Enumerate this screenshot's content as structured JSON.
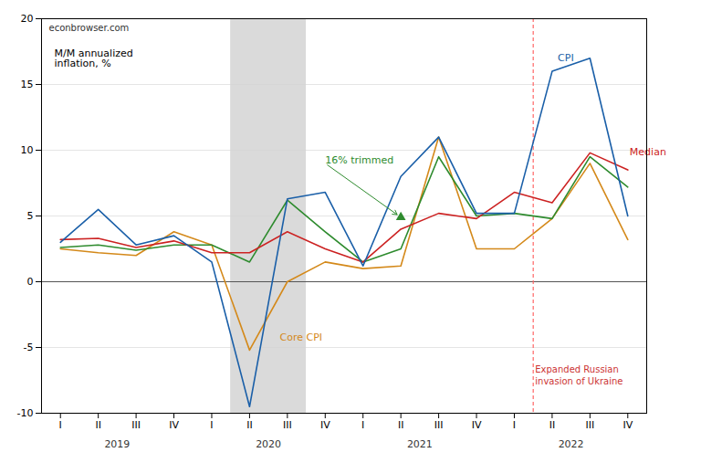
{
  "chart_data": {
    "type": "line",
    "ylabel": "M/M annualized\ninflation, %",
    "watermark": "econbrowser.com",
    "categories": [
      "I",
      "II",
      "III",
      "IV",
      "I",
      "II",
      "III",
      "IV",
      "I",
      "II",
      "III",
      "IV",
      "I",
      "II",
      "III",
      "IV"
    ],
    "category_groups": [
      {
        "label": "2019",
        "size": 4
      },
      {
        "label": "2020",
        "size": 4
      },
      {
        "label": "2021",
        "size": 4
      },
      {
        "label": "2022",
        "size": 4
      }
    ],
    "series": [
      {
        "name": "CPI",
        "color": "#1a5fa8",
        "values": [
          3.0,
          5.5,
          2.8,
          3.5,
          1.5,
          -9.5,
          6.3,
          6.8,
          1.2,
          8.0,
          11.0,
          5.2,
          5.2,
          16.0,
          17.0,
          5.0
        ]
      },
      {
        "name": "Core CPI",
        "color": "#d4891a",
        "values": [
          2.5,
          2.2,
          2.0,
          3.8,
          2.8,
          -5.2,
          0.0,
          1.5,
          1.0,
          1.2,
          11.0,
          2.5,
          2.5,
          4.8,
          9.0,
          3.2
        ]
      },
      {
        "name": "16% trimmed",
        "color": "#2e8b2e",
        "values": [
          2.6,
          2.8,
          2.4,
          2.8,
          2.8,
          1.5,
          6.2,
          3.8,
          1.5,
          2.5,
          9.5,
          5.0,
          5.2,
          4.8,
          9.5,
          7.2
        ]
      },
      {
        "name": "Median",
        "color": "#cc2222",
        "values": [
          3.2,
          3.3,
          2.6,
          3.1,
          2.2,
          2.2,
          3.8,
          2.5,
          1.5,
          4.0,
          5.2,
          4.8,
          6.8,
          6.0,
          9.8,
          8.5
        ]
      }
    ],
    "ylim": [
      -10,
      20
    ],
    "yticks": [
      -10,
      -5,
      0,
      5,
      10,
      15,
      20
    ],
    "grid": true,
    "shaded_spans": [
      {
        "start": 4.5,
        "end": 6.5
      }
    ],
    "event_lines": [
      {
        "x": 12.5,
        "color": "#ff6666",
        "label": "Expanded Russian\ninvasion of Ukraine",
        "label_x": 12.55,
        "label_y": -6.3,
        "label_color": "#cc3333"
      }
    ],
    "annotations": [
      {
        "text": "16% trimmed",
        "x": 7.0,
        "y": 9.0,
        "color": "#2e8b2e",
        "arrow_x": 9.0,
        "arrow_y": 4.9,
        "marker": "triangle"
      },
      {
        "text": "Core CPI",
        "x": 5.8,
        "y": -4.5,
        "color": "#d4891a"
      },
      {
        "text": "CPI",
        "x": 13.15,
        "y": 16.8,
        "color": "#1a5fa8"
      },
      {
        "text": "Median",
        "x": 15.05,
        "y": 9.6,
        "color": "#cc2222"
      }
    ]
  }
}
